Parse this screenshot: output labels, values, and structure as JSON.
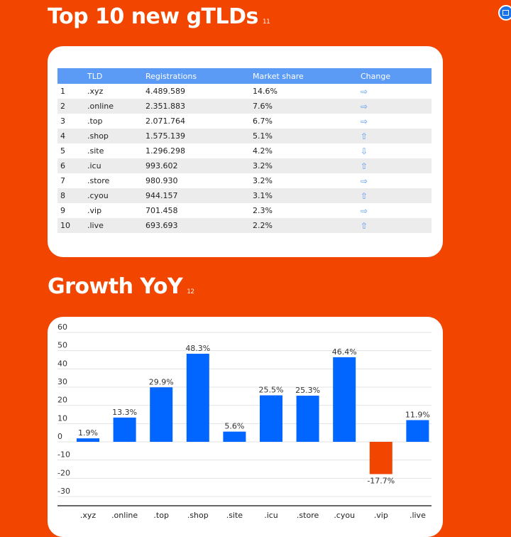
{
  "section1": {
    "title": "Top 10 new gTLDs",
    "footnote": "11"
  },
  "section2": {
    "title": "Growth YoY",
    "footnote": "12"
  },
  "table": {
    "headers": [
      "",
      "TLD",
      "Registrations",
      "Market share",
      "Change"
    ],
    "rows": [
      {
        "rank": "1",
        "tld": ".xyz",
        "registrations": "4.489.589",
        "share": "14.6%",
        "change": "⇨"
      },
      {
        "rank": "2",
        "tld": ".online",
        "registrations": "2.351.883",
        "share": "7.6%",
        "change": "⇨"
      },
      {
        "rank": "3",
        "tld": ".top",
        "registrations": "2.071.764",
        "share": "6.7%",
        "change": "⇨"
      },
      {
        "rank": "4",
        "tld": ".shop",
        "registrations": "1.575.139",
        "share": "5.1%",
        "change": "⇧"
      },
      {
        "rank": "5",
        "tld": ".site",
        "registrations": "1.296.298",
        "share": "4.2%",
        "change": "⇩"
      },
      {
        "rank": "6",
        "tld": ".icu",
        "registrations": "993.602",
        "share": "3.2%",
        "change": "⇧"
      },
      {
        "rank": "7",
        "tld": ".store",
        "registrations": "980.930",
        "share": "3.2%",
        "change": "⇨"
      },
      {
        "rank": "8",
        "tld": ".cyou",
        "registrations": "944.157",
        "share": "3.1%",
        "change": "⇧"
      },
      {
        "rank": "9",
        "tld": ".vip",
        "registrations": "701.458",
        "share": "2.3%",
        "change": "⇨"
      },
      {
        "rank": "10",
        "tld": ".live",
        "registrations": "693.693",
        "share": "2.2%",
        "change": "⇧"
      }
    ]
  },
  "colors": {
    "background": "#f24500",
    "positive": "#0066ff",
    "negative": "#f24500",
    "header": "#5b9af5"
  },
  "chart_data": {
    "type": "bar",
    "title": "",
    "xlabel": "",
    "ylabel": "",
    "categories": [
      ".xyz",
      ".online",
      ".top",
      ".shop",
      ".site",
      ".icu",
      ".store",
      ".cyou",
      ".vip",
      ".live"
    ],
    "values": [
      1.9,
      13.3,
      29.9,
      48.3,
      5.6,
      25.5,
      25.3,
      46.4,
      -17.7,
      11.9
    ],
    "labels": [
      "1.9%",
      "13.3%",
      "29.9%",
      "48.3%",
      "5.6%",
      "25.5%",
      "25.3%",
      "46.4%",
      "-17.7%",
      "11.9%"
    ],
    "ylim": [
      -30,
      60
    ],
    "yticks": [
      60,
      50,
      40,
      30,
      20,
      10,
      0,
      -10,
      -20,
      -30
    ],
    "grid": true,
    "legend": "none"
  }
}
